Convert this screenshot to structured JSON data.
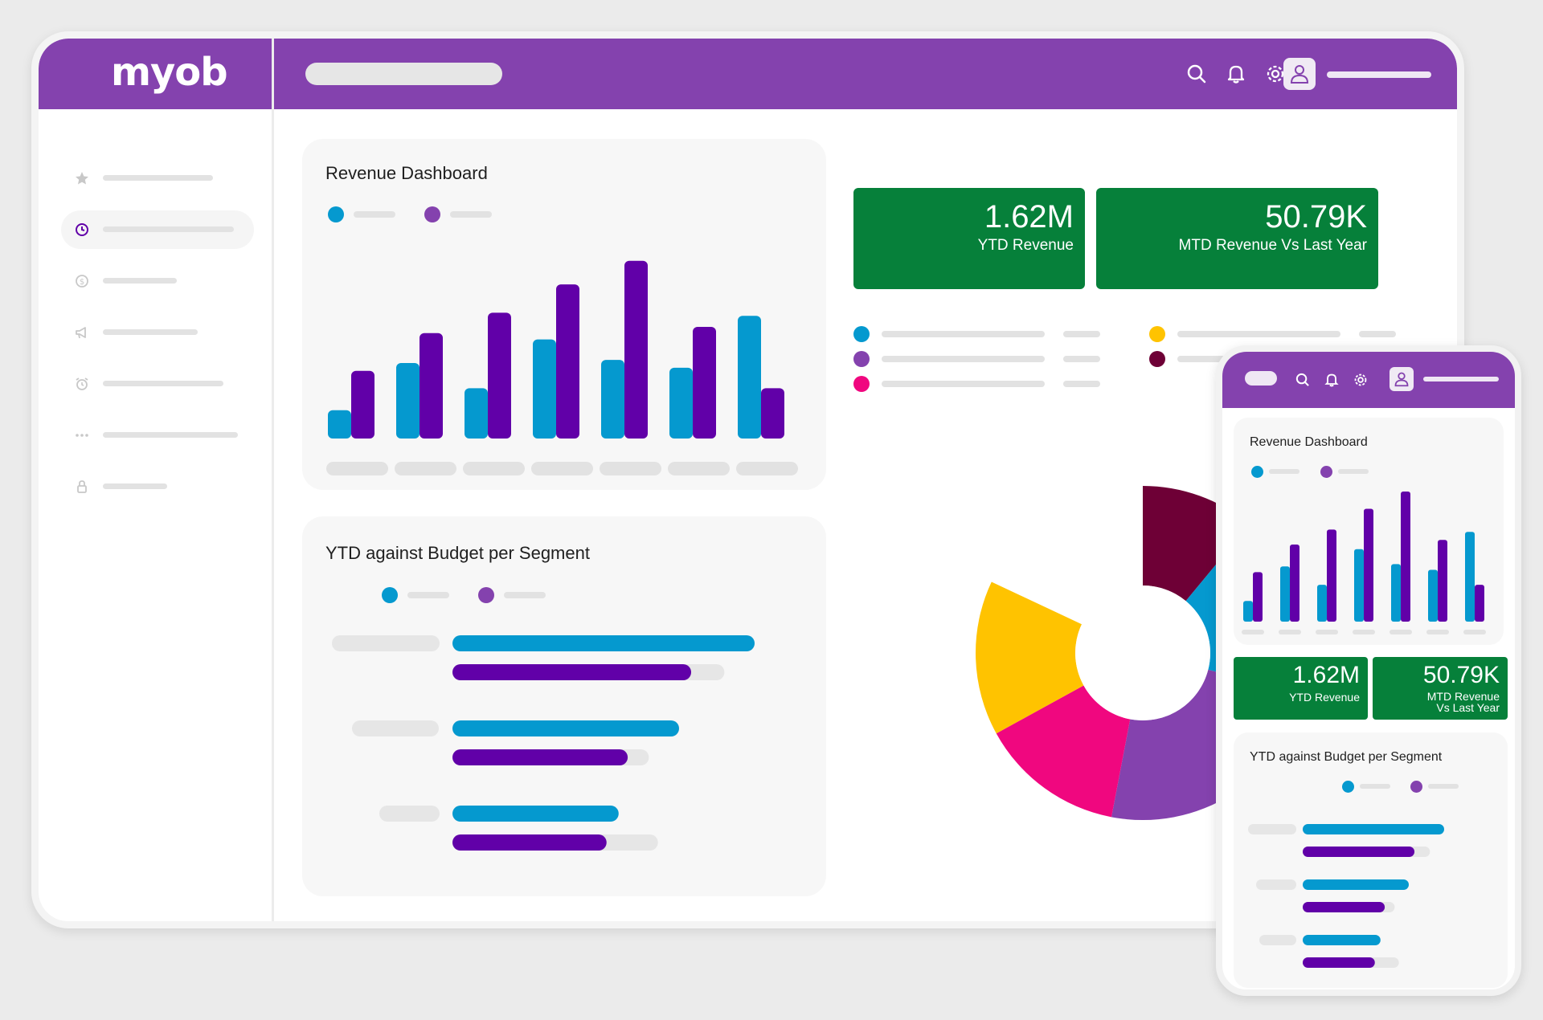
{
  "app": {
    "logo": "myob"
  },
  "header": {
    "icons": [
      "search-icon",
      "bell-icon",
      "gear-icon",
      "user-icon"
    ]
  },
  "sidebar": {
    "items": [
      {
        "icon": "star-icon",
        "active": false
      },
      {
        "icon": "clock-icon",
        "active": true
      },
      {
        "icon": "dollar-icon",
        "active": false
      },
      {
        "icon": "megaphone-icon",
        "active": false
      },
      {
        "icon": "alarm-icon",
        "active": false
      },
      {
        "icon": "more-icon",
        "active": false
      },
      {
        "icon": "lock-icon",
        "active": false
      }
    ]
  },
  "colors": {
    "brand": "#8442ae",
    "series_a": "#0599cf",
    "series_b": "#6100a8",
    "kpi": "#06803a",
    "yellow": "#ffc300",
    "maroon": "#6e0036",
    "magenta": "#f0077f"
  },
  "revenue_dashboard": {
    "title": "Revenue Dashboard",
    "chart_data": {
      "type": "bar",
      "series": [
        {
          "values": [
            18,
            48,
            32,
            63,
            50,
            45,
            78
          ]
        },
        {
          "values": [
            43,
            67,
            80,
            98,
            113,
            71,
            32
          ]
        }
      ],
      "ylim": [
        0,
        120
      ]
    }
  },
  "kpis": [
    {
      "value": "1.62M",
      "label": "YTD Revenue"
    },
    {
      "value": "50.79K",
      "label": "MTD Revenue Vs Last Year"
    }
  ],
  "budget_segment": {
    "title": "YTD against Budget per Segment",
    "chart_data": {
      "type": "bar",
      "orientation": "horizontal",
      "series": [
        {
          "values": [
            100,
            75,
            55
          ]
        },
        {
          "values": [
            79,
            58,
            51
          ]
        }
      ],
      "budget": [
        90,
        65,
        68
      ],
      "xlim": [
        0,
        100
      ]
    }
  },
  "donut": {
    "chart_data": {
      "type": "pie",
      "slices": [
        {
          "value": 11,
          "color": "#6e0036"
        },
        {
          "value": 18,
          "color": "#0599cf"
        },
        {
          "value": 24,
          "color": "#8442ae"
        },
        {
          "value": 14,
          "color": "#f0077f"
        },
        {
          "value": 15,
          "color": "#ffc300"
        }
      ]
    }
  },
  "mobile": {
    "revenue_title": "Revenue Dashboard",
    "kpis": [
      {
        "value": "1.62M",
        "label": "YTD Revenue"
      },
      {
        "value": "50.79K",
        "label": "MTD Revenue\nVs Last Year"
      }
    ],
    "budget_title": "YTD against Budget per Segment"
  }
}
